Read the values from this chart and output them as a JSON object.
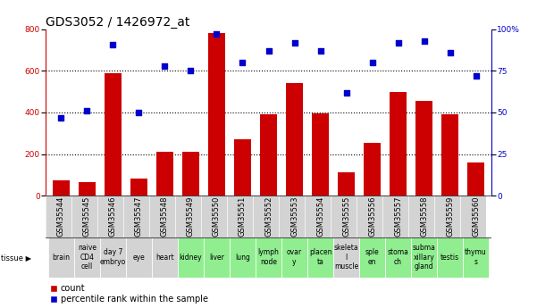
{
  "title": "GDS3052 / 1426972_at",
  "gsm_labels": [
    "GSM35544",
    "GSM35545",
    "GSM35546",
    "GSM35547",
    "GSM35548",
    "GSM35549",
    "GSM35550",
    "GSM35551",
    "GSM35552",
    "GSM35553",
    "GSM35554",
    "GSM35555",
    "GSM35556",
    "GSM35557",
    "GSM35558",
    "GSM35559",
    "GSM35560"
  ],
  "tissue_labels": [
    "brain",
    "naive\nCD4\ncell",
    "day 7\nembryо",
    "eye",
    "heart",
    "kidney",
    "liver",
    "lung",
    "lymph\nnode",
    "ovar\ny",
    "placen\nta",
    "skeleta\nl\nmuscle",
    "sple\nen",
    "stoma\nch",
    "subma\nxillary\ngland",
    "testis",
    "thymu\ns"
  ],
  "tissue_colors": [
    "#d3d3d3",
    "#d3d3d3",
    "#d3d3d3",
    "#d3d3d3",
    "#d3d3d3",
    "#90ee90",
    "#90ee90",
    "#90ee90",
    "#90ee90",
    "#90ee90",
    "#90ee90",
    "#d3d3d3",
    "#90ee90",
    "#90ee90",
    "#90ee90",
    "#90ee90",
    "#90ee90"
  ],
  "count_values": [
    75,
    65,
    590,
    80,
    210,
    210,
    780,
    270,
    390,
    540,
    395,
    110,
    255,
    500,
    455,
    390,
    160
  ],
  "percentile_values": [
    47,
    51,
    91,
    50,
    78,
    75,
    97,
    80,
    87,
    92,
    87,
    62,
    80,
    92,
    93,
    86,
    72
  ],
  "bar_color": "#cc0000",
  "dot_color": "#0000cc",
  "left_ylim": [
    0,
    800
  ],
  "right_ylim": [
    0,
    100
  ],
  "left_yticks": [
    0,
    200,
    400,
    600,
    800
  ],
  "right_yticks": [
    0,
    25,
    50,
    75,
    100
  ],
  "right_yticklabels": [
    "0",
    "25",
    "50",
    "75",
    "100%"
  ],
  "grid_levels": [
    200,
    400,
    600
  ],
  "grid_color": "#000000",
  "title_fontsize": 10,
  "tick_fontsize": 6.5,
  "gsm_fontsize": 6,
  "tissue_fontsize": 5.5,
  "legend_fontsize": 7
}
